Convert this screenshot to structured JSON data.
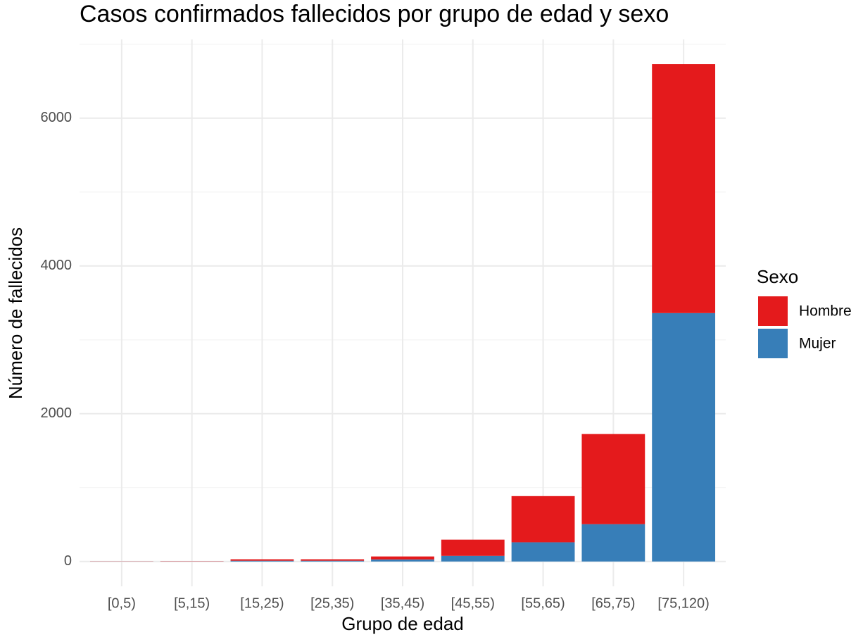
{
  "chart_data": {
    "type": "stacked-bar",
    "title": "Casos confirmados fallecidos por grupo de edad y sexo",
    "x_label": "Grupo de edad",
    "y_label": "Número de fallecidos",
    "legend_title": "Sexo",
    "categories": [
      "[0,5)",
      "[5,15)",
      "[15,25)",
      "[25,35)",
      "[35,45)",
      "[45,55)",
      "[55,65)",
      "[65,75)",
      "[75,120)"
    ],
    "series": [
      {
        "name": "Hombre",
        "color": "#e41a1c",
        "values": [
          2,
          3,
          20,
          20,
          40,
          220,
          625,
          1220,
          3370
        ]
      },
      {
        "name": "Mujer",
        "color": "#377eb8",
        "values": [
          1,
          1,
          10,
          10,
          28,
          76,
          260,
          505,
          3362
        ]
      }
    ],
    "ylim": [
      -336,
      7066
    ],
    "yticks": [
      0,
      2000,
      4000,
      6000
    ],
    "yminor": [
      1000,
      3000,
      5000,
      7000
    ],
    "grid": true,
    "legend_position": "right"
  }
}
